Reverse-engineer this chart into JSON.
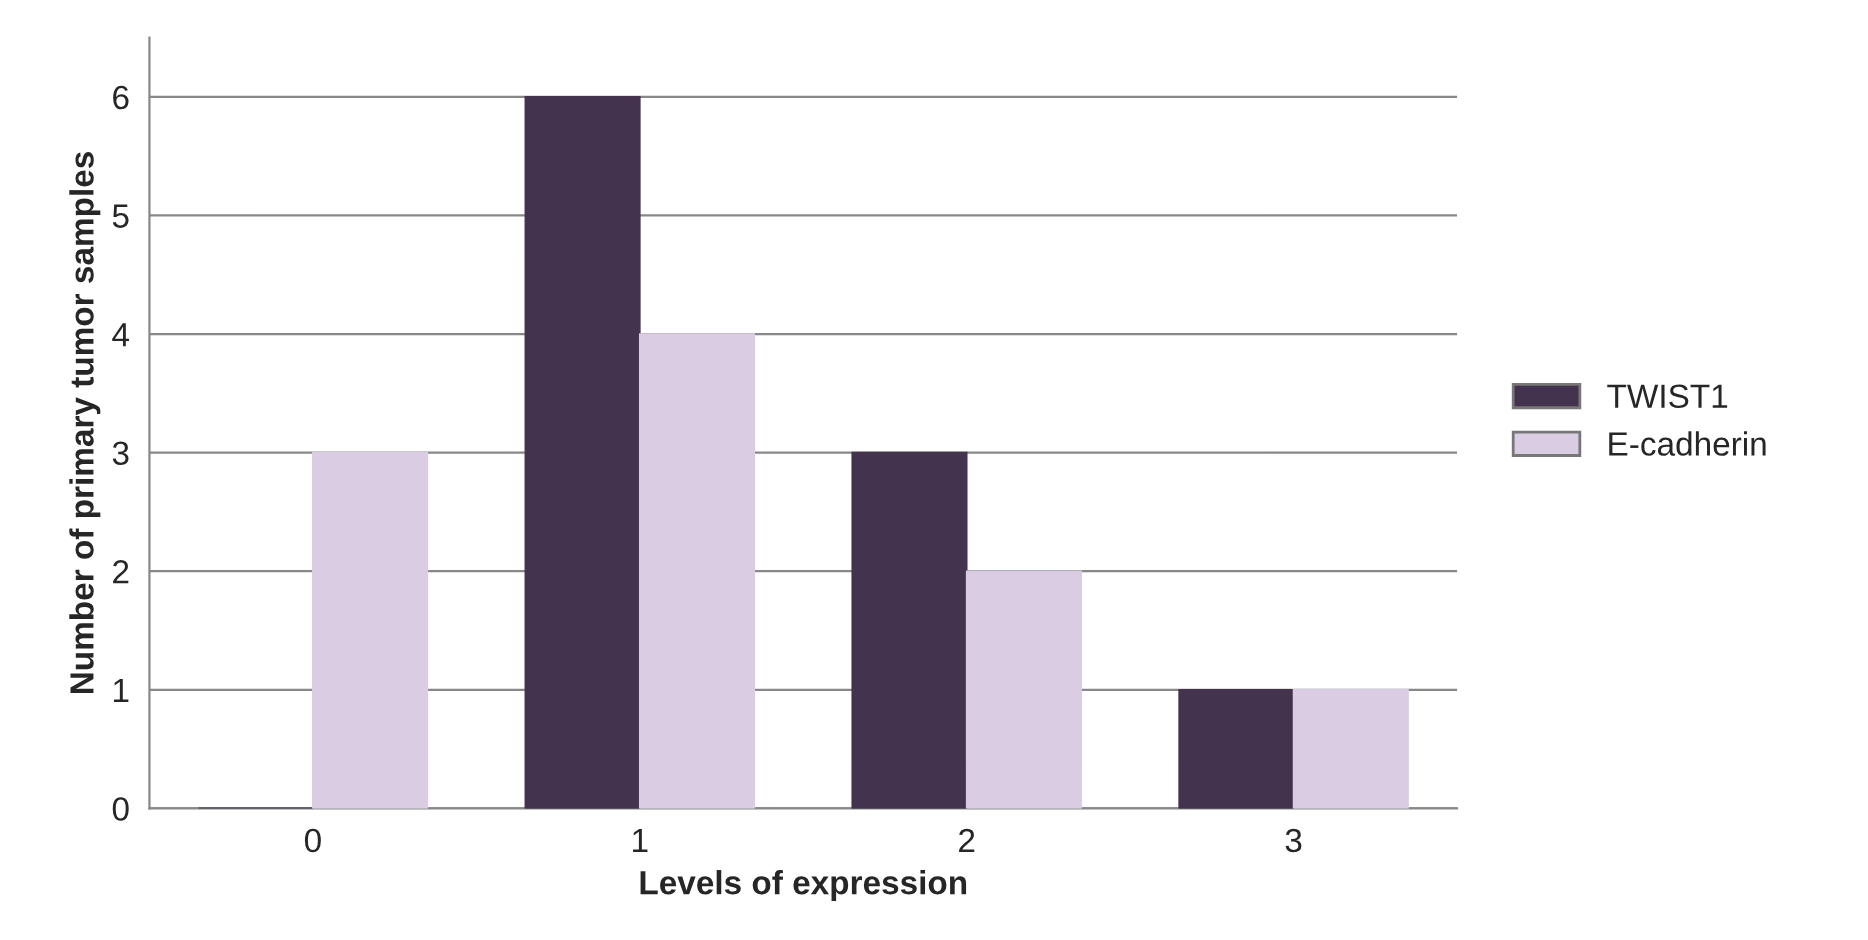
{
  "chart_data": {
    "type": "bar",
    "xlabel": "Levels of expression",
    "ylabel": "Number of primary tumor samples",
    "categories": [
      "0",
      "1",
      "2",
      "3"
    ],
    "series": [
      {
        "name": "TWIST1",
        "color": "#44334f",
        "values": [
          0,
          6,
          3,
          1
        ]
      },
      {
        "name": "E-cadherin",
        "color": "#d9cce3",
        "values": [
          3,
          4,
          2,
          1
        ]
      }
    ],
    "ylim": [
      0,
      6.5
    ],
    "yticks": [
      0,
      1,
      2,
      3,
      4,
      5,
      6
    ],
    "grid": "y",
    "legend": "right"
  }
}
